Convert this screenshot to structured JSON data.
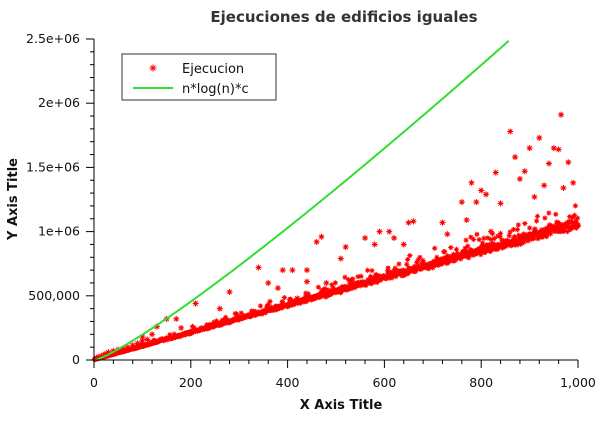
{
  "chart_data": {
    "type": "scatter",
    "title": "Ejecuciones de edificios iguales",
    "xlabel": "X Axis Title",
    "ylabel": "Y Axis Title",
    "xlim": [
      0,
      1000
    ],
    "ylim": [
      0,
      2500000
    ],
    "x_ticks": [
      0,
      200,
      400,
      600,
      800,
      1000
    ],
    "x_tick_labels": [
      "0",
      "200",
      "400",
      "600",
      "800",
      "1,000"
    ],
    "y_ticks": [
      0,
      500000,
      1000000,
      1500000,
      2000000,
      2500000
    ],
    "y_tick_labels": [
      "0",
      "500,000",
      "1e+06",
      "1.5e+06",
      "2e+06",
      "2.5e+06"
    ],
    "grid": false,
    "legend_position": "top-left",
    "series": [
      {
        "name": "Ejecucion",
        "kind": "scatter",
        "marker": "asterisk",
        "color": "#ff0000",
        "trend": {
          "description": "dense band roughly linear, y ≈ 1050*x",
          "slope": 1050
        },
        "points": [
          [
            5,
            15000
          ],
          [
            10,
            25000
          ],
          [
            15,
            30000
          ],
          [
            20,
            40000
          ],
          [
            25,
            50000
          ],
          [
            30,
            60000
          ],
          [
            40,
            70000
          ],
          [
            50,
            80000
          ],
          [
            60,
            90000
          ],
          [
            70,
            100000
          ],
          [
            80,
            115000
          ],
          [
            90,
            130000
          ],
          [
            100,
            150000
          ],
          [
            100,
            180000
          ],
          [
            110,
            160000
          ],
          [
            120,
            200000
          ],
          [
            130,
            260000
          ],
          [
            150,
            170000
          ],
          [
            150,
            320000
          ],
          [
            170,
            320000
          ],
          [
            180,
            250000
          ],
          [
            200,
            220000
          ],
          [
            210,
            440000
          ],
          [
            240,
            260000
          ],
          [
            260,
            400000
          ],
          [
            280,
            530000
          ],
          [
            300,
            320000
          ],
          [
            340,
            720000
          ],
          [
            350,
            370000
          ],
          [
            360,
            600000
          ],
          [
            380,
            560000
          ],
          [
            390,
            700000
          ],
          [
            400,
            420000
          ],
          [
            410,
            700000
          ],
          [
            420,
            480000
          ],
          [
            440,
            700000
          ],
          [
            440,
            610000
          ],
          [
            460,
            920000
          ],
          [
            470,
            960000
          ],
          [
            480,
            600000
          ],
          [
            500,
            530000
          ],
          [
            510,
            790000
          ],
          [
            520,
            880000
          ],
          [
            550,
            580000
          ],
          [
            560,
            950000
          ],
          [
            580,
            900000
          ],
          [
            590,
            1000000
          ],
          [
            600,
            650000
          ],
          [
            610,
            1000000
          ],
          [
            620,
            950000
          ],
          [
            640,
            900000
          ],
          [
            650,
            1070000
          ],
          [
            660,
            1080000
          ],
          [
            700,
            720000
          ],
          [
            720,
            1070000
          ],
          [
            730,
            980000
          ],
          [
            760,
            1230000
          ],
          [
            770,
            1090000
          ],
          [
            780,
            1380000
          ],
          [
            790,
            1230000
          ],
          [
            800,
            1320000
          ],
          [
            810,
            1290000
          ],
          [
            820,
            1000000
          ],
          [
            830,
            1460000
          ],
          [
            840,
            1220000
          ],
          [
            860,
            1780000
          ],
          [
            870,
            1580000
          ],
          [
            880,
            1410000
          ],
          [
            890,
            1470000
          ],
          [
            900,
            1650000
          ],
          [
            910,
            1270000
          ],
          [
            920,
            1730000
          ],
          [
            930,
            1360000
          ],
          [
            940,
            1530000
          ],
          [
            950,
            1650000
          ],
          [
            960,
            1640000
          ],
          [
            965,
            1910000
          ],
          [
            970,
            1340000
          ],
          [
            980,
            1540000
          ],
          [
            990,
            1380000
          ],
          [
            1000,
            1050000
          ]
        ]
      },
      {
        "name": "n*log(n)*c",
        "kind": "line",
        "color": "#33dd33",
        "formula": "c * n * log(n)",
        "c": 429.5,
        "x_range": [
          1,
          857
        ]
      }
    ]
  }
}
